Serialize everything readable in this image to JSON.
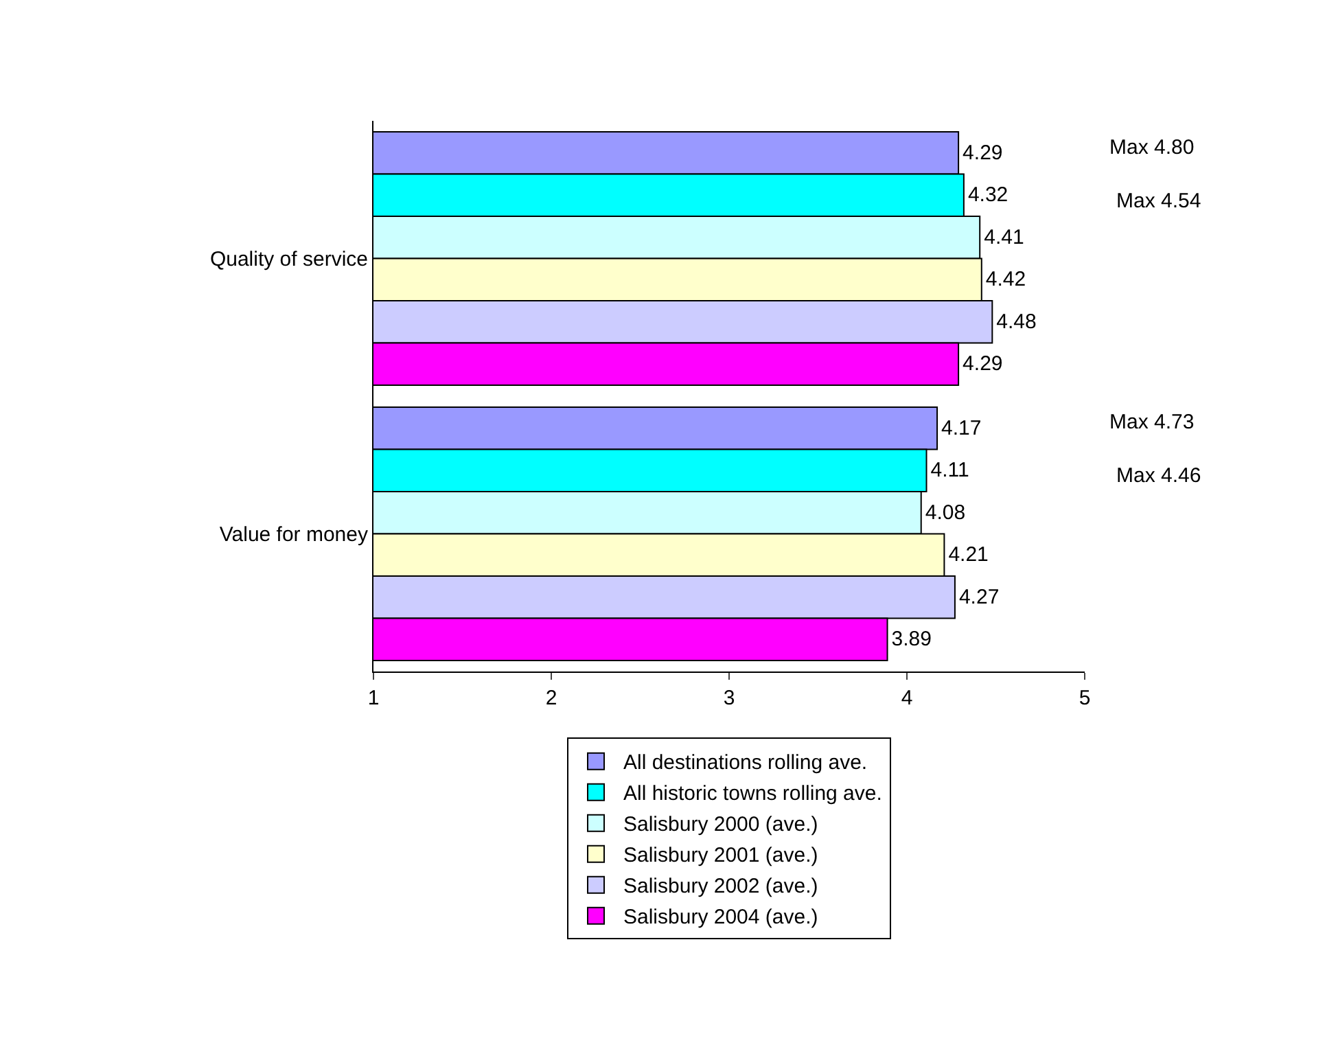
{
  "chart_data": {
    "type": "bar",
    "orientation": "horizontal",
    "categories": [
      "Quality of service",
      "Value for money"
    ],
    "series": [
      {
        "name": "All destinations rolling ave.",
        "color": "#9999ff",
        "values": [
          4.29,
          4.17
        ]
      },
      {
        "name": "All historic towns rolling ave.",
        "color": "#00ffff",
        "values": [
          4.32,
          4.11
        ]
      },
      {
        "name": "Salisbury 2000 (ave.)",
        "color": "#ccffff",
        "values": [
          4.41,
          4.08
        ]
      },
      {
        "name": "Salisbury 2001 (ave.)",
        "color": "#ffffcc",
        "values": [
          4.42,
          4.21
        ]
      },
      {
        "name": "Salisbury 2002 (ave.)",
        "color": "#ccccff",
        "values": [
          4.48,
          4.27
        ]
      },
      {
        "name": "Salisbury 2004 (ave.)",
        "color": "#ff00ff",
        "values": [
          4.29,
          3.89
        ]
      }
    ],
    "xlim": [
      1,
      5
    ],
    "xticks": [
      1,
      2,
      3,
      4,
      5
    ],
    "legend": "bottom",
    "data_labels": true,
    "annotations": [
      "Max 4.80",
      "Max 4.54",
      "Max 4.73",
      "Max 4.46"
    ]
  }
}
